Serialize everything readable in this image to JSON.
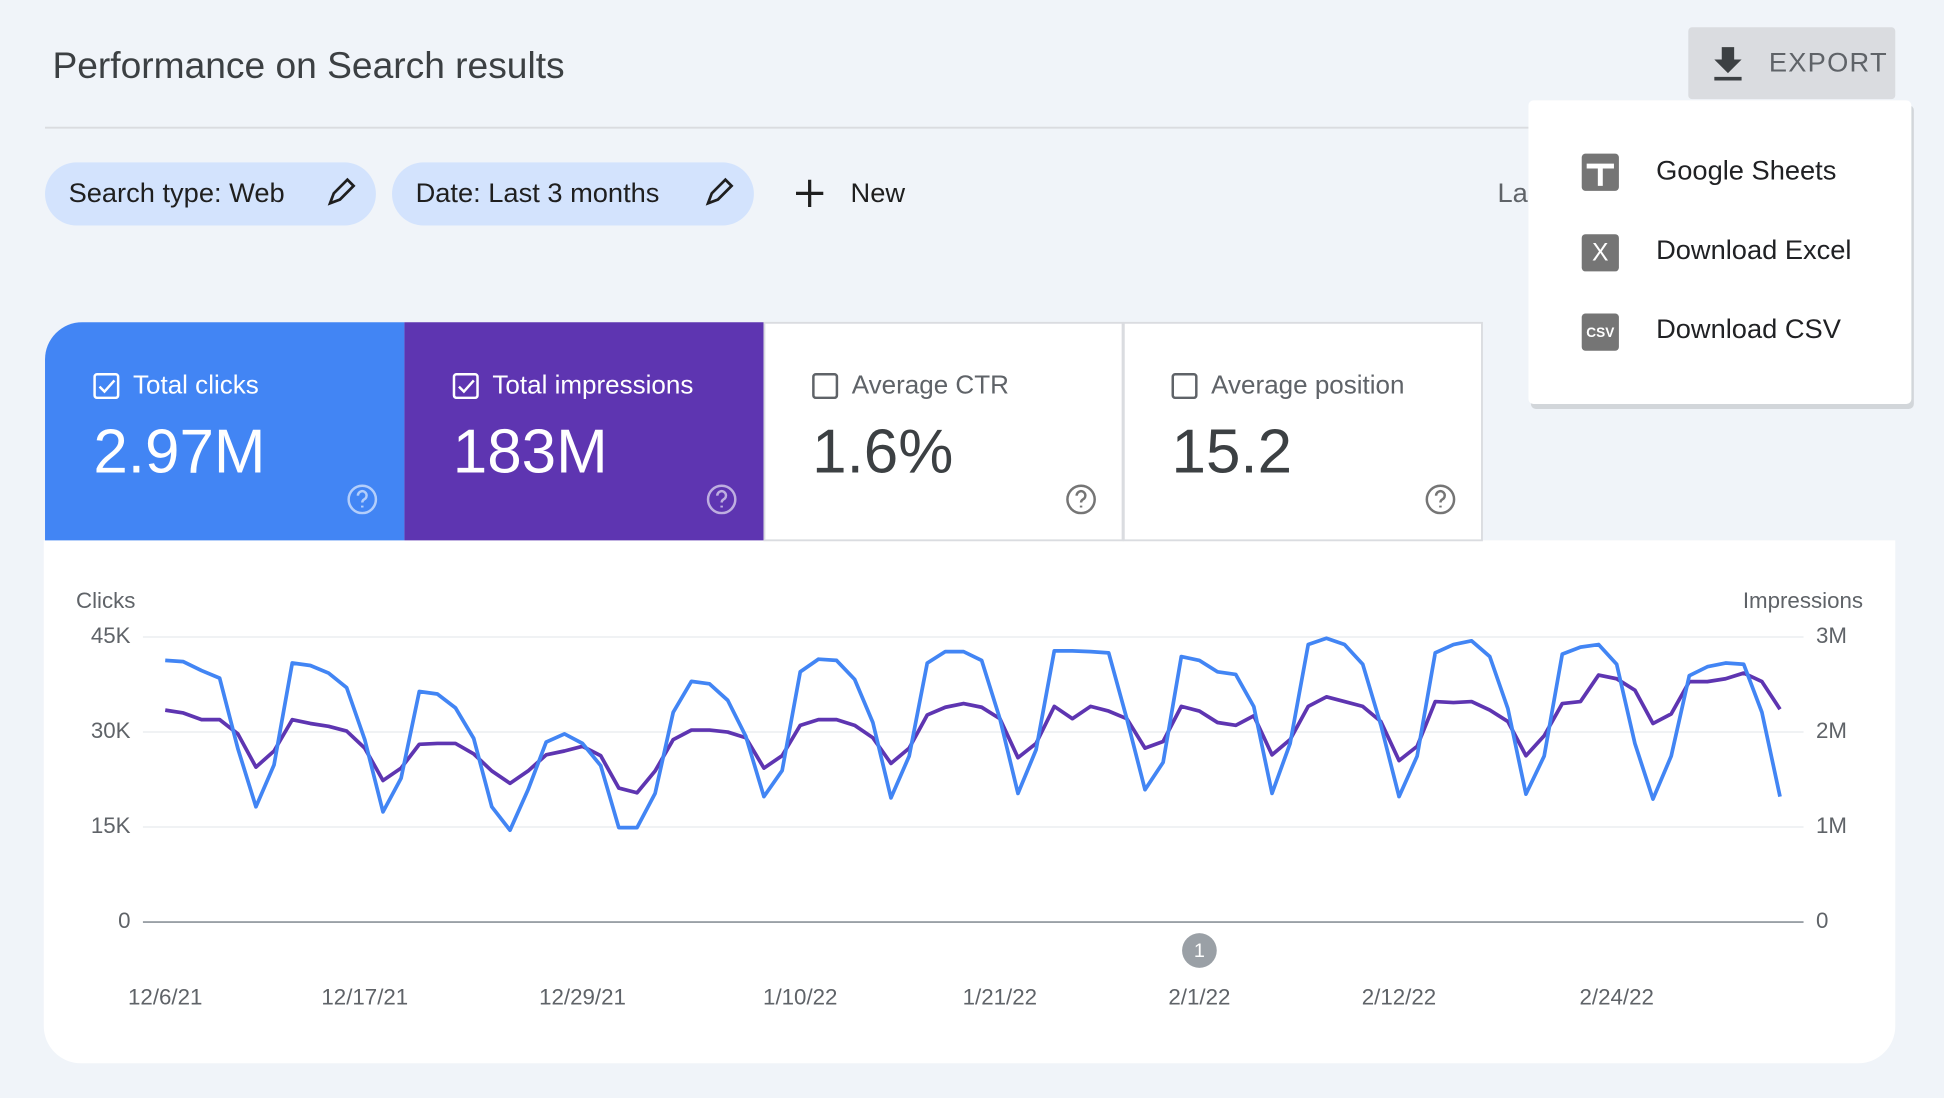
{
  "header": {
    "title": "Performance on Search results",
    "export": "EXPORT"
  },
  "filters": {
    "chips": [
      "Search type: Web",
      "Date: Last 3 months"
    ],
    "new": "New",
    "last_updated": "La"
  },
  "export_menu": {
    "items": [
      {
        "label": "Google Sheets"
      },
      {
        "label": "Download Excel",
        "icon": "X"
      },
      {
        "label": "Download CSV",
        "icon": "CSV"
      }
    ]
  },
  "metrics": [
    {
      "label": "Total clicks",
      "value": "2.97M",
      "checked": true,
      "color": "#4285f4"
    },
    {
      "label": "Total impressions",
      "value": "183M",
      "checked": true,
      "color": "#5e35b1"
    },
    {
      "label": "Average CTR",
      "value": "1.6%",
      "checked": false
    },
    {
      "label": "Average position",
      "value": "15.2",
      "checked": false
    }
  ],
  "chart_data": {
    "type": "line",
    "ylabel": "Clicks",
    "y2label": "Impressions",
    "x": [
      "12/6/21",
      "12/7/21",
      "12/8/21",
      "12/9/21",
      "12/10/21",
      "12/11/21",
      "12/12/21",
      "12/13/21",
      "12/14/21",
      "12/15/21",
      "12/16/21",
      "12/17/21",
      "12/18/21",
      "12/19/21",
      "12/20/21",
      "12/21/21",
      "12/22/21",
      "12/23/21",
      "12/24/21",
      "12/25/21",
      "12/26/21",
      "12/27/21",
      "12/28/21",
      "12/29/21",
      "12/30/21",
      "12/31/21",
      "1/1/22",
      "1/2/22",
      "1/3/22",
      "1/4/22",
      "1/5/22",
      "1/6/22",
      "1/7/22",
      "1/8/22",
      "1/9/22",
      "1/10/22",
      "1/11/22",
      "1/12/22",
      "1/13/22",
      "1/14/22",
      "1/15/22",
      "1/16/22",
      "1/17/22",
      "1/18/22",
      "1/19/22",
      "1/20/22",
      "1/21/22",
      "1/22/22",
      "1/23/22",
      "1/24/22",
      "1/25/22",
      "1/26/22",
      "1/27/22",
      "1/28/22",
      "1/29/22",
      "1/30/22",
      "1/31/22",
      "2/1/22",
      "2/2/22",
      "2/3/22",
      "2/4/22",
      "2/5/22",
      "2/6/22",
      "2/7/22",
      "2/8/22",
      "2/9/22",
      "2/10/22",
      "2/11/22",
      "2/12/22",
      "2/13/22",
      "2/14/22",
      "2/15/22",
      "2/16/22",
      "2/17/22",
      "2/18/22",
      "2/19/22",
      "2/20/22",
      "2/21/22",
      "2/22/22",
      "2/23/22",
      "2/24/22",
      "2/25/22",
      "2/26/22",
      "2/27/22",
      "2/28/22",
      "3/1/22",
      "3/2/22",
      "3/3/22",
      "3/4/22",
      "3/5/22"
    ],
    "xticks": [
      "12/6/21",
      "12/17/21",
      "12/29/21",
      "1/10/22",
      "1/21/22",
      "2/1/22",
      "2/12/22",
      "2/24/22"
    ],
    "series": [
      {
        "color": "#4285f4",
        "axis": "y",
        "values": [
          41300,
          41100,
          39700,
          38500,
          27400,
          18200,
          24800,
          40900,
          40500,
          39300,
          37000,
          28800,
          17400,
          22700,
          36400,
          36000,
          33800,
          29000,
          18200,
          14500,
          20900,
          28400,
          29700,
          28200,
          24700,
          14900,
          14900,
          20300,
          33100,
          38000,
          37600,
          35000,
          29300,
          19800,
          23900,
          39500,
          41500,
          41300,
          38300,
          31500,
          19600,
          26200,
          40900,
          42700,
          42700,
          41300,
          32100,
          20300,
          27200,
          42800,
          42800,
          42700,
          42500,
          32100,
          20900,
          25200,
          41900,
          41300,
          39500,
          39100,
          34000,
          20300,
          28200,
          43800,
          44800,
          43800,
          40700,
          31100,
          19800,
          26200,
          42500,
          43800,
          44400,
          41900,
          33700,
          20200,
          26200,
          42300,
          43400,
          43800,
          40700,
          28200,
          19400,
          26200,
          38900,
          40300,
          40900,
          40700,
          33100,
          19800
        ]
      },
      {
        "color": "#5e35b1",
        "axis": "y2",
        "values": [
          2230000,
          2200000,
          2130000,
          2130000,
          1980000,
          1630000,
          1800000,
          2130000,
          2090000,
          2060000,
          2010000,
          1830000,
          1490000,
          1620000,
          1870000,
          1880000,
          1880000,
          1770000,
          1590000,
          1460000,
          1590000,
          1760000,
          1800000,
          1850000,
          1750000,
          1410000,
          1360000,
          1590000,
          1920000,
          2020000,
          2020000,
          2000000,
          1940000,
          1620000,
          1750000,
          2070000,
          2130000,
          2130000,
          2070000,
          1940000,
          1670000,
          1830000,
          2180000,
          2260000,
          2300000,
          2260000,
          2140000,
          1730000,
          1880000,
          2270000,
          2140000,
          2270000,
          2220000,
          2140000,
          1830000,
          1900000,
          2270000,
          2220000,
          2100000,
          2070000,
          2170000,
          1760000,
          1920000,
          2270000,
          2370000,
          2320000,
          2270000,
          2110000,
          1700000,
          1850000,
          2320000,
          2310000,
          2320000,
          2230000,
          2110000,
          1750000,
          1960000,
          2300000,
          2320000,
          2600000,
          2560000,
          2440000,
          2090000,
          2190000,
          2530000,
          2530000,
          2560000,
          2620000,
          2530000,
          2240000
        ]
      }
    ],
    "ylim": [
      0,
      45000
    ],
    "yticks": [
      0,
      {
        "value": 15000,
        "label": "15K"
      },
      {
        "value": 30000,
        "label": "30K"
      },
      {
        "value": 45000,
        "label": "45K"
      }
    ],
    "y2lim": [
      0,
      3000000
    ],
    "y2ticks": [
      0,
      {
        "value": 1000000,
        "label": "1M"
      },
      {
        "value": 2000000,
        "label": "2M"
      },
      {
        "value": 3000000,
        "label": "3M"
      }
    ],
    "grid": true,
    "annotations": [
      {
        "x": "2/1/22",
        "label": "1"
      }
    ]
  }
}
